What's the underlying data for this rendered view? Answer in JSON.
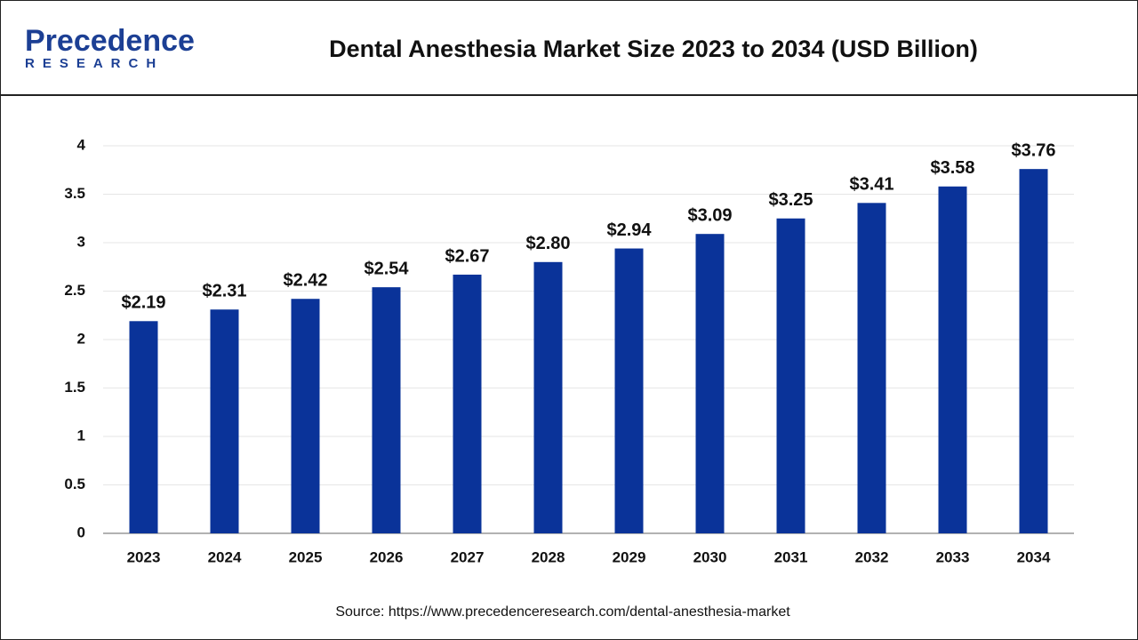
{
  "logo": {
    "name": "Precedence",
    "tagline": "RESEARCH"
  },
  "chart_data": {
    "type": "bar",
    "title": "Dental Anesthesia Market Size 2023 to 2034 (USD Billion)",
    "categories": [
      "2023",
      "2024",
      "2025",
      "2026",
      "2027",
      "2028",
      "2029",
      "2030",
      "2031",
      "2032",
      "2033",
      "2034"
    ],
    "values": [
      2.19,
      2.31,
      2.42,
      2.54,
      2.67,
      2.8,
      2.94,
      3.09,
      3.25,
      3.41,
      3.58,
      3.76
    ],
    "value_labels": [
      "$2.19",
      "$2.31",
      "$2.42",
      "$2.54",
      "$2.67",
      "$2.80",
      "$2.94",
      "$3.09",
      "$3.25",
      "$3.41",
      "$3.58",
      "$3.76"
    ],
    "color": "#0a3399",
    "ylim": [
      0,
      4
    ],
    "yticks": [
      0,
      0.5,
      1,
      1.5,
      2,
      2.5,
      3,
      3.5,
      4
    ],
    "grid": true,
    "source": "Source: https://www.precedenceresearch.com/dental-anesthesia-market"
  }
}
